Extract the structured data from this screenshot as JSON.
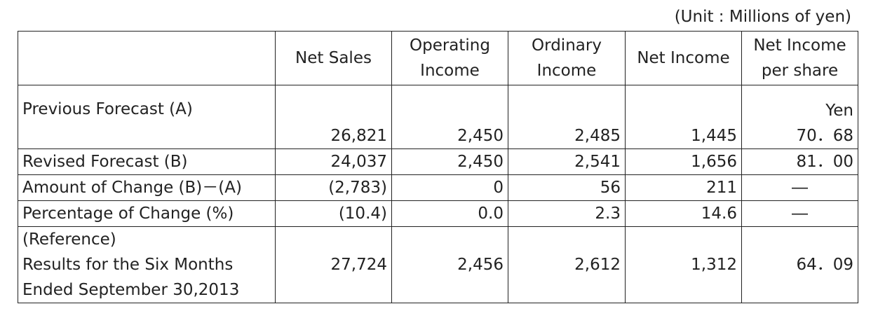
{
  "unit_note": "(Unit : Millions of yen)",
  "columns": {
    "net_sales": "Net Sales",
    "operating_income": [
      "Operating",
      "Income"
    ],
    "ordinary_income": [
      "Ordinary",
      "Income"
    ],
    "net_income": "Net Income",
    "eps": [
      "Net Income",
      "per share"
    ]
  },
  "eps_unit": "Yen",
  "rows": {
    "previous": {
      "label": "Previous Forecast (A)",
      "net_sales": "26,821",
      "operating_income": "2,450",
      "ordinary_income": "2,485",
      "net_income": "1,445",
      "eps": "70．68"
    },
    "revised": {
      "label": "Revised Forecast (B)",
      "net_sales": "24,037",
      "operating_income": "2,450",
      "ordinary_income": "2,541",
      "net_income": "1,656",
      "eps": "81．00"
    },
    "change_amount": {
      "label": "Amount of Change (B)－(A)",
      "net_sales": "(2,783)",
      "operating_income": "0",
      "ordinary_income": "56",
      "net_income": "211",
      "eps": "―"
    },
    "change_pct": {
      "label": "Percentage of Change (%)",
      "net_sales": "(10.4)",
      "operating_income": "0.0",
      "ordinary_income": "2.3",
      "net_income": "14.6",
      "eps": "―"
    },
    "reference": {
      "label": [
        "(Reference)",
        "Results for the Six Months",
        "Ended September 30,2013"
      ],
      "net_sales": "27,724",
      "operating_income": "2,456",
      "ordinary_income": "2,612",
      "net_income": "1,312",
      "eps": "64．09"
    }
  }
}
